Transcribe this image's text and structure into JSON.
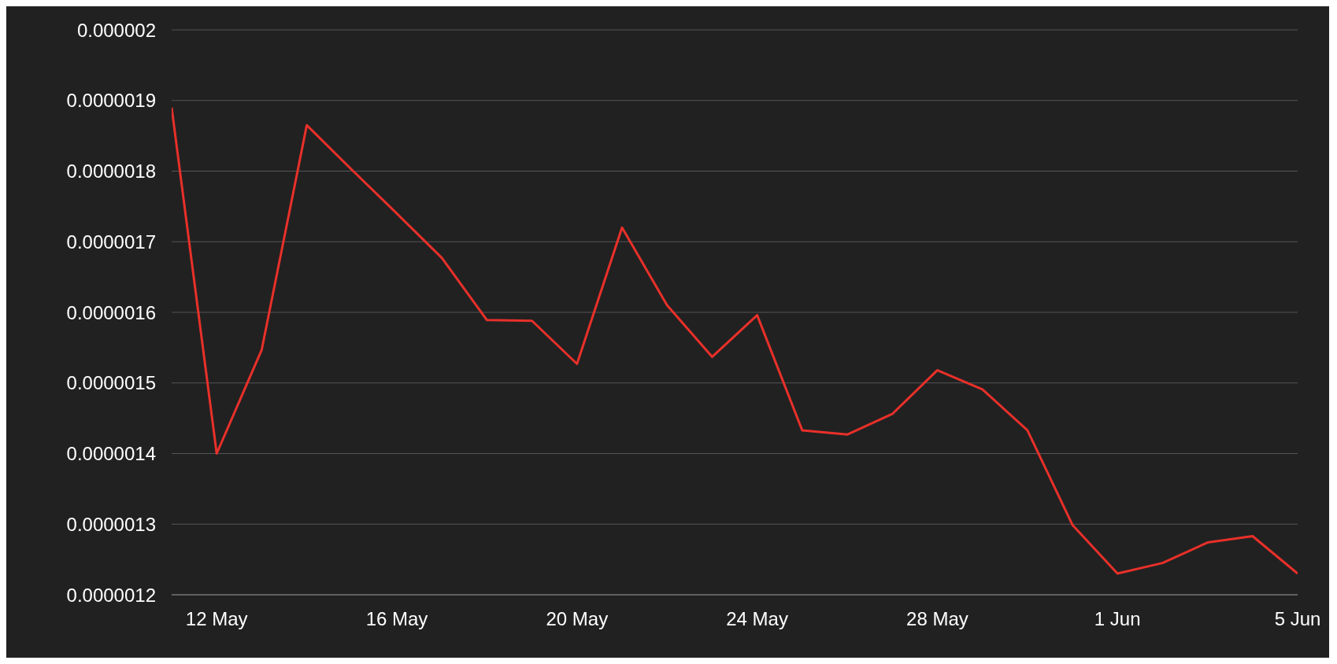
{
  "chart_data": {
    "type": "line",
    "x": [
      "--05-11",
      "--05-12",
      "--05-13",
      "--05-14",
      "--05-15",
      "--05-16",
      "--05-17",
      "--05-18",
      "--05-19",
      "--05-20",
      "--05-21",
      "--05-22",
      "--05-23",
      "--05-24",
      "--05-25",
      "--05-26",
      "--05-27",
      "--05-28",
      "--05-29",
      "--05-30",
      "--05-31",
      "--06-01",
      "--06-02",
      "--06-03",
      "--06-04",
      "--06-05"
    ],
    "series": [
      {
        "color": "#e8302a",
        "values": [
          1.89e-06,
          1.4e-06,
          1.547e-06,
          1.865e-06,
          1.802e-06,
          1.74e-06,
          1.677e-06,
          1.589e-06,
          1.588e-06,
          1.527e-06,
          1.72e-06,
          1.61e-06,
          1.537e-06,
          1.596e-06,
          1.433e-06,
          1.427e-06,
          1.456e-06,
          1.518e-06,
          1.491e-06,
          1.433e-06,
          1.299e-06,
          1.23e-06,
          1.245e-06,
          1.274e-06,
          1.283e-06,
          1.23e-06
        ]
      }
    ],
    "xlim": [
      "--05-11",
      "--06-05"
    ],
    "xticks": [
      {
        "value": "--05-12",
        "label": "12 May"
      },
      {
        "value": "--05-16",
        "label": "16 May"
      },
      {
        "value": "--05-20",
        "label": "20 May"
      },
      {
        "value": "--05-24",
        "label": "24 May"
      },
      {
        "value": "--05-28",
        "label": "28 May"
      },
      {
        "value": "--06-01",
        "label": "1 Jun"
      },
      {
        "value": "--06-05",
        "label": "5 Jun"
      }
    ],
    "ylim": [
      1.2e-06,
      2e-06
    ],
    "yticks": [
      {
        "value": 1.2e-06,
        "label": "0.0000012"
      },
      {
        "value": 1.3e-06,
        "label": "0.0000013"
      },
      {
        "value": 1.4e-06,
        "label": "0.0000014"
      },
      {
        "value": 1.5e-06,
        "label": "0.0000015"
      },
      {
        "value": 1.6e-06,
        "label": "0.0000016"
      },
      {
        "value": 1.7e-06,
        "label": "0.0000017"
      },
      {
        "value": 1.8e-06,
        "label": "0.0000018"
      },
      {
        "value": 1.9e-06,
        "label": "0.0000019"
      },
      {
        "value": 2e-06,
        "label": "0.000002"
      }
    ],
    "grid": "y",
    "marker": "none",
    "line_style": "solid"
  }
}
